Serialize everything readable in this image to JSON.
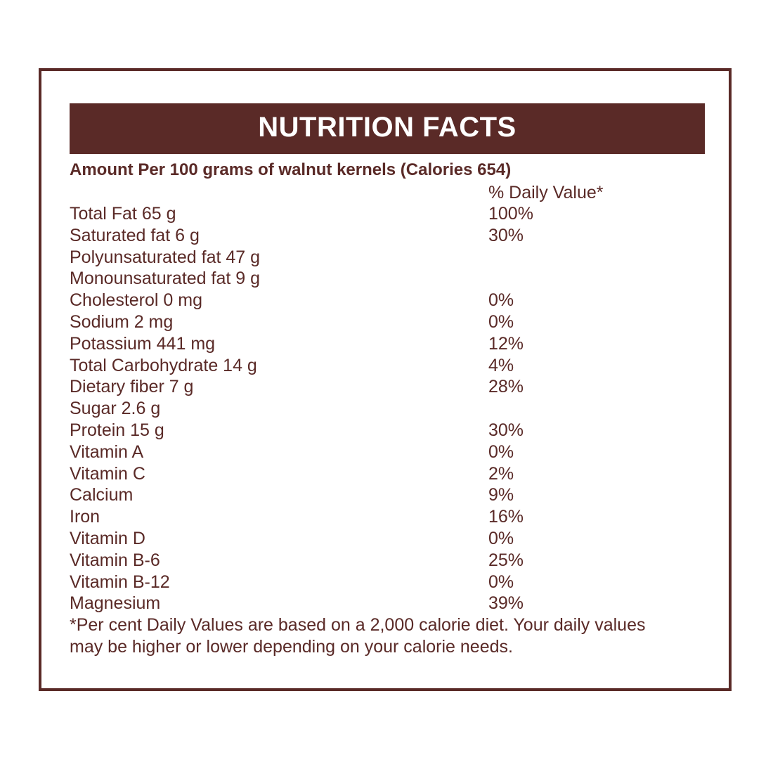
{
  "label": {
    "title": "NUTRITION FACTS",
    "serving": "Amount Per 100 grams of walnut kernels (Calories 654)",
    "dv_header": "% Daily Value*",
    "nutrients": [
      {
        "name": "Total Fat 65 g",
        "dv": "100%"
      },
      {
        "name": "Saturated fat 6 g",
        "dv": "30%"
      },
      {
        "name": "Polyunsaturated fat 47 g",
        "dv": ""
      },
      {
        "name": "Monounsaturated fat 9 g",
        "dv": ""
      },
      {
        "name": "Cholesterol 0 mg",
        "dv": "0%"
      },
      {
        "name": "Sodium 2 mg",
        "dv": "0%"
      },
      {
        "name": "Potassium 441 mg",
        "dv": "12%"
      },
      {
        "name": "Total Carbohydrate 14 g",
        "dv": "4%"
      },
      {
        "name": "Dietary fiber 7 g",
        "dv": "28%"
      },
      {
        "name": "Sugar 2.6 g",
        "dv": ""
      },
      {
        "name": "Protein 15 g",
        "dv": "30%"
      },
      {
        "name": "Vitamin A",
        "dv": "0%"
      },
      {
        "name": "Vitamin C",
        "dv": "2%"
      },
      {
        "name": "Calcium",
        "dv": "9%"
      },
      {
        "name": "Iron",
        "dv": "16%"
      },
      {
        "name": "Vitamin D",
        "dv": "0%"
      },
      {
        "name": "Vitamin B-6",
        "dv": "25%"
      },
      {
        "name": "Vitamin B-12",
        "dv": "0%"
      },
      {
        "name": "Magnesium",
        "dv": "39%"
      }
    ],
    "footnote_line1": "*Per cent Daily Values are based on a 2,000 calorie diet. Your daily values",
    "footnote_line2": "may be higher or lower depending on your calorie needs."
  },
  "colors": {
    "brand": "#5a2a27",
    "background": "#ffffff",
    "title_text": "#ffffff"
  }
}
